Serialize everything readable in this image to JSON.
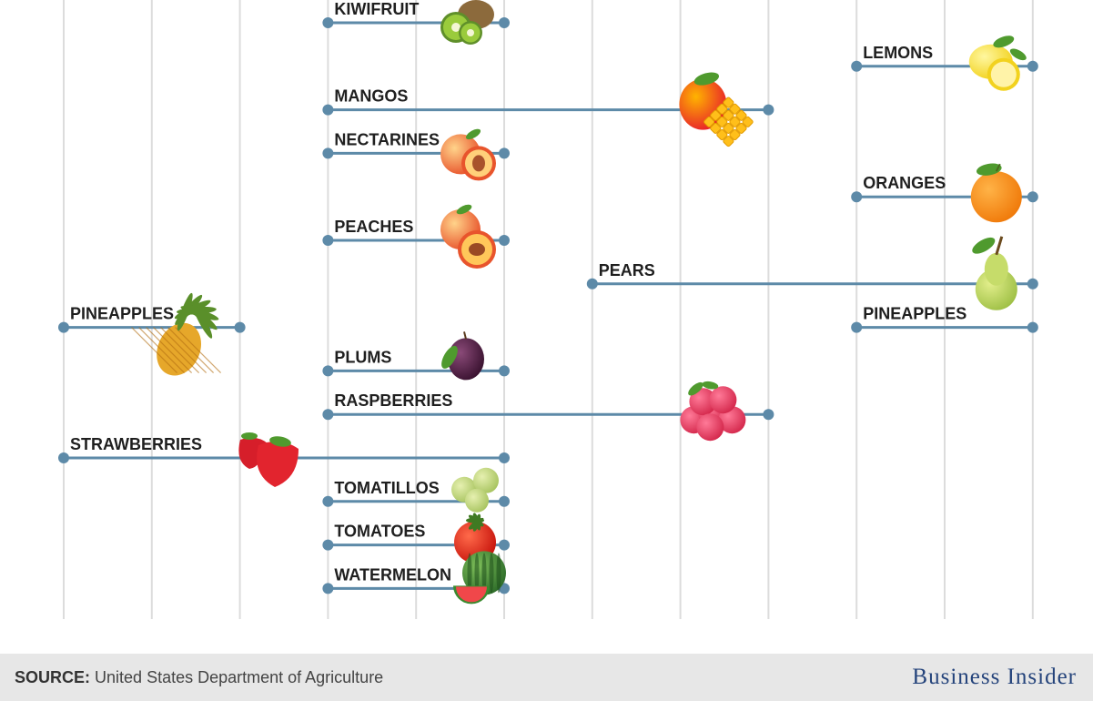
{
  "chart_data": {
    "type": "range-bar",
    "title": "",
    "xlabel": "",
    "ylabel": "",
    "x_start": 0,
    "x_end": 12,
    "colors": {
      "bar": "#5d8aa8",
      "grid": "#dcdcdc",
      "label": "#1f1f1f"
    },
    "rows": [
      {
        "label": "KIWIFRUIT",
        "segments": [
          [
            3,
            5
          ]
        ],
        "fruit": "kiwi-icon"
      },
      {
        "label": "LEMONS",
        "segments": [
          [
            9,
            11
          ]
        ],
        "fruit": "lemon-icon"
      },
      {
        "label": "MANGOS",
        "segments": [
          [
            3,
            8
          ]
        ],
        "fruit": "mango-icon"
      },
      {
        "label": "NECTARINES",
        "segments": [
          [
            3,
            5
          ]
        ],
        "fruit": "nectarine-icon"
      },
      {
        "label": "ORANGES",
        "segments": [
          [
            9,
            11
          ]
        ],
        "fruit": "orange-icon"
      },
      {
        "label": "PEACHES",
        "segments": [
          [
            3,
            5
          ]
        ],
        "fruit": "peach-icon"
      },
      {
        "label": "PEARS",
        "segments": [
          [
            6,
            11
          ]
        ],
        "fruit": "pear-icon"
      },
      {
        "label": "PINEAPPLES",
        "segments": [
          [
            0,
            2
          ],
          [
            9,
            11
          ]
        ],
        "fruit": "pineapple-icon"
      },
      {
        "label": "PLUMS",
        "segments": [
          [
            3,
            5
          ]
        ],
        "fruit": "plum-icon"
      },
      {
        "label": "RASPBERRIES",
        "segments": [
          [
            3,
            8
          ]
        ],
        "fruit": "raspberry-icon"
      },
      {
        "label": "STRAWBERRIES",
        "segments": [
          [
            0,
            5
          ]
        ],
        "fruit": "strawberry-icon"
      },
      {
        "label": "TOMATILLOS",
        "segments": [
          [
            3,
            5
          ]
        ],
        "fruit": "tomatillo-icon"
      },
      {
        "label": "TOMATOES",
        "segments": [
          [
            3,
            5
          ]
        ],
        "fruit": "tomato-icon"
      },
      {
        "label": "WATERMELON",
        "segments": [
          [
            3,
            5
          ]
        ],
        "fruit": "watermelon-icon"
      }
    ]
  },
  "footer": {
    "source_label": "SOURCE:",
    "source_text": "United States Department of Agriculture",
    "brand": "Business Insider"
  }
}
